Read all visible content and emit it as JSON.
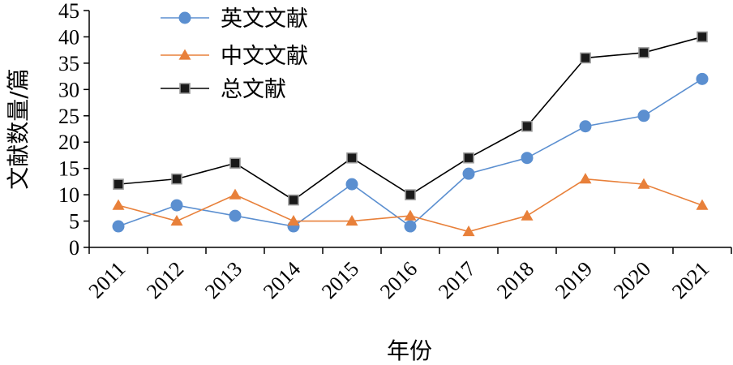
{
  "chart_data": {
    "type": "line",
    "xlabel": "年份",
    "ylabel": "文献数量/篇",
    "categories": [
      "2011",
      "2012",
      "2013",
      "2014",
      "2015",
      "2016",
      "2017",
      "2018",
      "2019",
      "2020",
      "2021"
    ],
    "ylim": [
      0,
      45
    ],
    "yticks": [
      "0",
      "5",
      "10",
      "15",
      "20",
      "25",
      "30",
      "35",
      "40",
      "45"
    ],
    "grid": false,
    "legend_position": "top-left",
    "series": [
      {
        "name": "英文文献",
        "marker": "circle",
        "color": "#5b8fd0",
        "values": [
          4,
          8,
          6,
          4,
          12,
          4,
          14,
          17,
          23,
          25,
          32
        ]
      },
      {
        "name": "中文文献",
        "marker": "triangle",
        "color": "#e8803a",
        "values": [
          8,
          5,
          10,
          5,
          5,
          6,
          3,
          6,
          13,
          12,
          8
        ]
      },
      {
        "name": "总文献",
        "marker": "square",
        "color": "#000000",
        "values": [
          12,
          13,
          16,
          9,
          17,
          10,
          17,
          23,
          36,
          37,
          40
        ]
      }
    ]
  }
}
